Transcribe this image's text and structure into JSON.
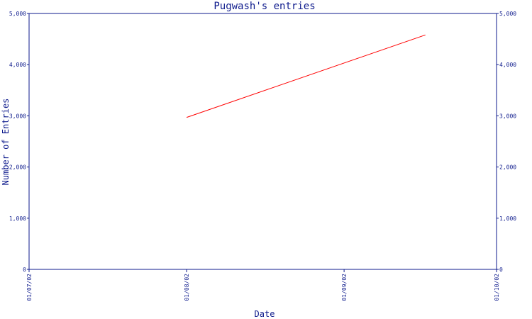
{
  "chart_data": {
    "type": "line",
    "title": "Pugwash's entries",
    "xlabel": "Date",
    "ylabel": "Number of Entries",
    "ylim": [
      0,
      5000
    ],
    "y_ticks": [
      0,
      1000,
      2000,
      3000,
      4000,
      5000
    ],
    "y_tick_labels": [
      "0",
      "1,000",
      "2,000",
      "3,000",
      "4,000",
      "5,000"
    ],
    "x_tick_labels": [
      "01/07/02",
      "01/08/02",
      "01/09/02",
      "01/10/02"
    ],
    "grid": false,
    "axes_color": "#0d1a8c",
    "series": [
      {
        "color": "#ff0000",
        "points": [
          {
            "x": "01/08/02",
            "y": 2970
          },
          {
            "x": "17/09/02",
            "y": 4580
          }
        ]
      }
    ]
  }
}
